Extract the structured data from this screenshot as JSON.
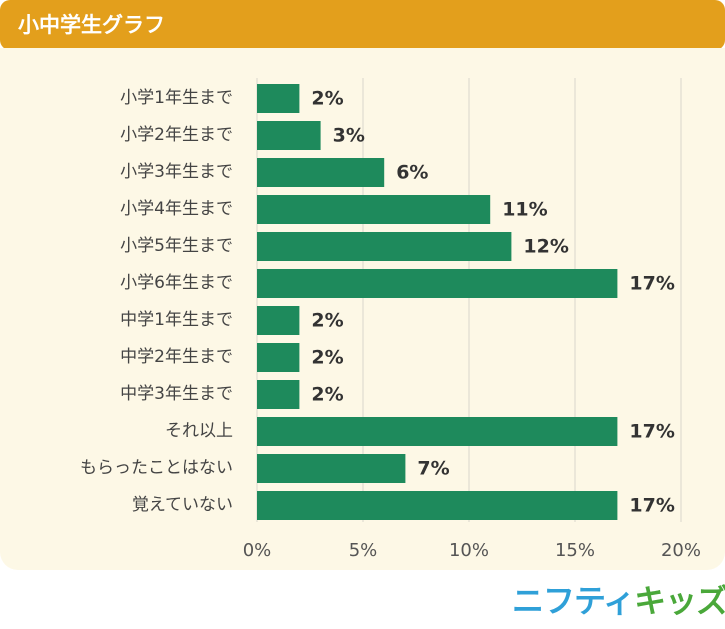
{
  "header": {
    "title": "小中学生グラフ"
  },
  "logo": {
    "part1": "ニフティ",
    "part2": "キッズ"
  },
  "colors": {
    "bar": "#1e8a5c",
    "header": "#e39f1c",
    "panel": "#fdf8e6",
    "grid": "#d9d6cc"
  },
  "chart_data": {
    "type": "bar",
    "orientation": "horizontal",
    "title": "小中学生グラフ",
    "categories": [
      "小学1年生まで",
      "小学2年生まで",
      "小学3年生まで",
      "小学4年生まで",
      "小学5年生まで",
      "小学6年生まで",
      "中学1年生まで",
      "中学2年生まで",
      "中学3年生まで",
      "それ以上",
      "もらったことはない",
      "覚えていない"
    ],
    "values": [
      2,
      3,
      6,
      11,
      12,
      17,
      2,
      2,
      2,
      17,
      7,
      17
    ],
    "data_labels": [
      "2%",
      "3%",
      "6%",
      "11%",
      "12%",
      "17%",
      "2%",
      "2%",
      "2%",
      "17%",
      "7%",
      "17%"
    ],
    "xlim": [
      0,
      20
    ],
    "xticks": [
      0,
      5,
      10,
      15,
      20
    ],
    "xtick_labels": [
      "0%",
      "5%",
      "10%",
      "15%",
      "20%"
    ],
    "grid": true
  }
}
